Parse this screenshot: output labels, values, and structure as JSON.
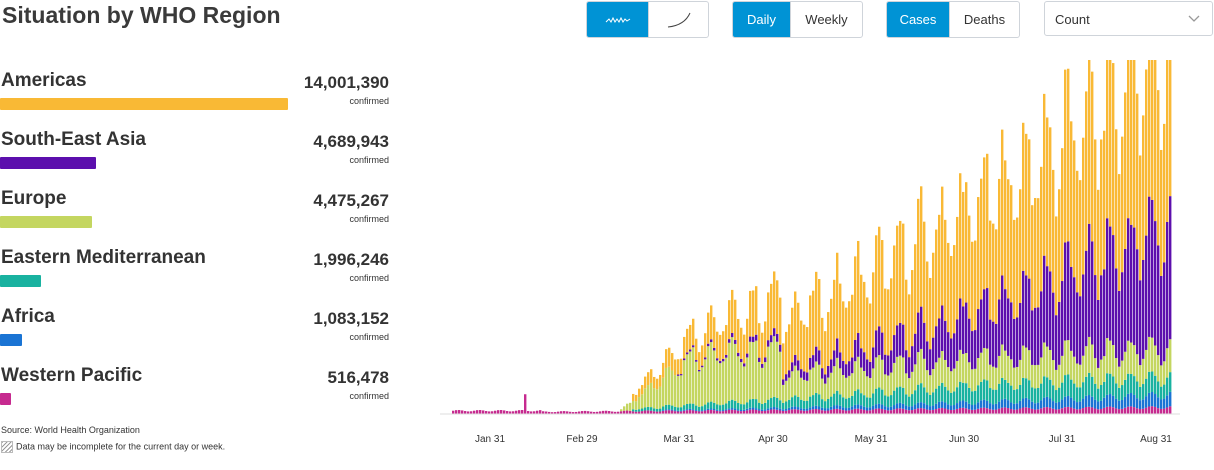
{
  "title": "Situation by WHO Region",
  "controls": {
    "chart_style": {
      "items": [
        "wave-line-icon",
        "smooth-curve-icon"
      ],
      "active": 0
    },
    "period": {
      "items": [
        "Daily",
        "Weekly"
      ],
      "active": 0
    },
    "metric": {
      "items": [
        "Cases",
        "Deaths"
      ],
      "active": 0
    },
    "scale_select": {
      "value": "Count"
    }
  },
  "regions": [
    {
      "name": "Americas",
      "count": "14,001,390",
      "value": 14001390,
      "label": "confirmed",
      "color": "#f9b935"
    },
    {
      "name": "South-East Asia",
      "count": "4,689,943",
      "value": 4689943,
      "label": "confirmed",
      "color": "#5c0fad"
    },
    {
      "name": "Europe",
      "count": "4,475,267",
      "value": 4475267,
      "label": "confirmed",
      "color": "#c4d660"
    },
    {
      "name": "Eastern Mediterranean",
      "count": "1,996,246",
      "value": 1996246,
      "label": "confirmed",
      "color": "#19b2a0"
    },
    {
      "name": "Africa",
      "count": "1,083,152",
      "value": 1083152,
      "label": "confirmed",
      "color": "#1a74d4"
    },
    {
      "name": "Western Pacific",
      "count": "516,478",
      "value": 516478,
      "label": "confirmed",
      "color": "#c62a8f"
    }
  ],
  "footer": {
    "source": "Source: World Health Organization",
    "note": "Data may be incomplete for the current day or week."
  },
  "chart_data": {
    "type": "bar",
    "stacked": true,
    "x_tick_labels": [
      "Jan 31",
      "Feb 29",
      "Mar 31",
      "Apr 30",
      "May 31",
      "Jun 30",
      "Jul 31",
      "Aug 31"
    ],
    "series_order": [
      "Western Pacific",
      "Africa",
      "Eastern Mediterranean",
      "Europe",
      "South-East Asia",
      "Americas"
    ],
    "colors": [
      "#c62a8f",
      "#1a74d4",
      "#19b2a0",
      "#c4d660",
      "#5c0fad",
      "#f9b935"
    ],
    "approx_daily_peak_by_month": [
      {
        "month": "Jan",
        "Western Pacific": 1500
      },
      {
        "month": "Mar",
        "Europe": 30000,
        "Americas": 20000
      },
      {
        "month": "Apr",
        "Americas": 35000,
        "Europe": 30000
      },
      {
        "month": "Jun",
        "Americas": 110000,
        "South-East Asia": 20000
      },
      {
        "month": "Aug",
        "Americas": 140000,
        "South-East Asia": 70000
      }
    ],
    "grid": false,
    "legend": "left-panel"
  }
}
